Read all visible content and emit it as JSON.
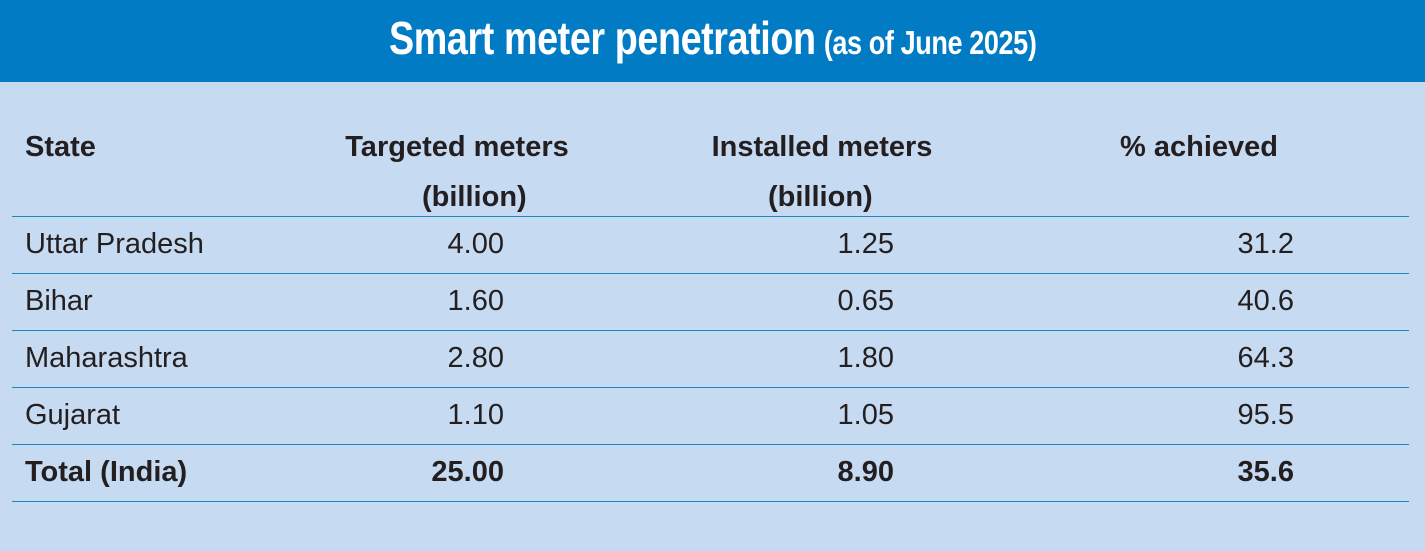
{
  "banner": {
    "title": "Smart meter penetration",
    "subtitle": "(as of June 2025)",
    "color": "#017cc4"
  },
  "chart_data": {
    "type": "table",
    "title": "Smart meter penetration",
    "subtitle": "(as of June 2025)",
    "columns": [
      {
        "label": "State",
        "unit": ""
      },
      {
        "label": "Targeted meters",
        "unit": "(billion)"
      },
      {
        "label": "Installed meters",
        "unit": "(billion)"
      },
      {
        "label": "% achieved",
        "unit": ""
      }
    ],
    "rows": [
      {
        "state": "Uttar Pradesh",
        "targeted": "4.00",
        "installed": "1.25",
        "pct": "31.2"
      },
      {
        "state": "Bihar",
        "targeted": "1.60",
        "installed": "0.65",
        "pct": "40.6"
      },
      {
        "state": "Maharashtra",
        "targeted": "2.80",
        "installed": "1.80",
        "pct": "64.3"
      },
      {
        "state": "Gujarat",
        "targeted": "1.10",
        "installed": "1.05",
        "pct": "95.5"
      }
    ],
    "total": {
      "state": "Total (India)",
      "targeted": "25.00",
      "installed": "8.90",
      "pct": "35.6"
    }
  },
  "colors": {
    "background": "#c6daf1",
    "rule": "#1d86c8",
    "banner_text": "#ffffff"
  }
}
